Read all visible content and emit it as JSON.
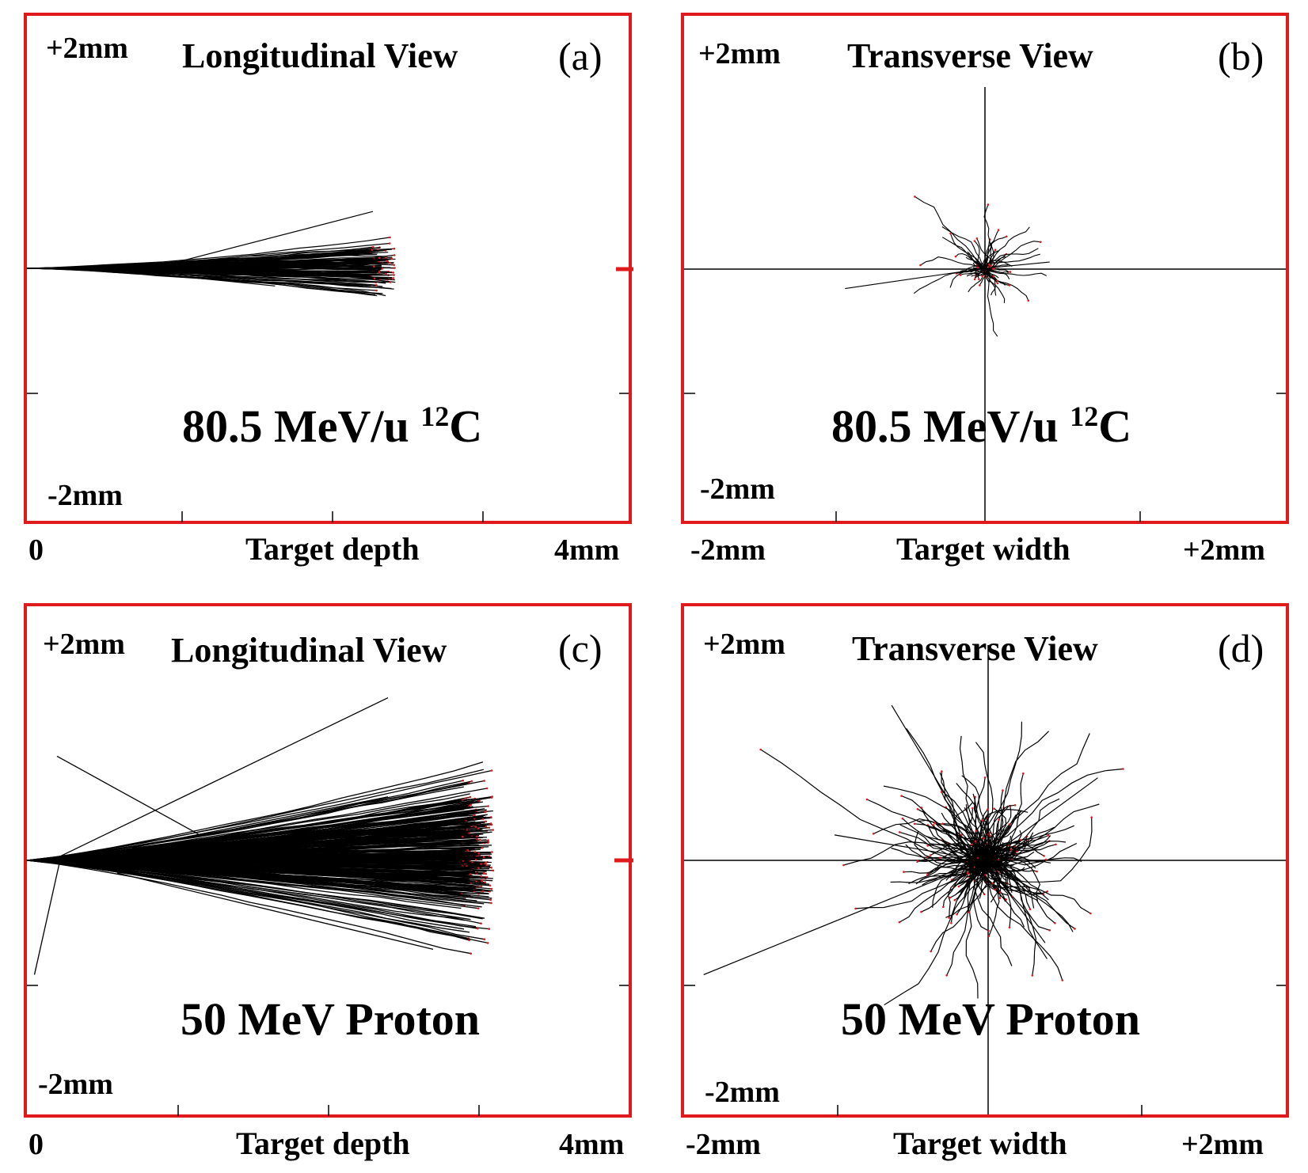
{
  "figure": {
    "colors": {
      "frame": "#e0191c",
      "track": "#000000",
      "stop": "#e0191c",
      "axis": "#000000"
    },
    "panels": [
      {
        "id": "a",
        "view_label": "Longitudinal View",
        "panel_label": "(a)",
        "top_label": "+2mm",
        "bottom_label": "-2mm",
        "beam_label": "80.5 MeV/u ",
        "beam_sup": "12",
        "beam_suffix": "C",
        "x_start": "0",
        "x_label": "Target depth",
        "x_end": "4mm"
      },
      {
        "id": "b",
        "view_label": "Transverse View",
        "panel_label": "(b)",
        "top_label": "+2mm",
        "bottom_label": "-2mm",
        "beam_label": "80.5 MeV/u ",
        "beam_sup": "12",
        "beam_suffix": "C",
        "x_start": "-2mm",
        "x_label": "Target width",
        "x_end": "+2mm"
      },
      {
        "id": "c",
        "view_label": "Longitudinal View",
        "panel_label": "(c)",
        "top_label": "+2mm",
        "bottom_label": "-2mm",
        "beam_label": "50 MeV Proton",
        "beam_sup": "",
        "beam_suffix": "",
        "x_start": "0",
        "x_label": "Target depth",
        "x_end": "4mm"
      },
      {
        "id": "d",
        "view_label": "Transverse View",
        "panel_label": "(d)",
        "top_label": "+2mm",
        "bottom_label": "-2mm",
        "beam_label": "50 MeV Proton",
        "beam_sup": "",
        "beam_suffix": "",
        "x_start": "-2mm",
        "x_label": "Target width",
        "x_end": "+2mm"
      }
    ]
  },
  "chart_data": [
    {
      "type": "scatter",
      "panel": "a",
      "title": "Longitudinal View",
      "annotation": "80.5 MeV/u 12C",
      "xlabel": "Target depth",
      "xlim": [
        0,
        4
      ],
      "ylim": [
        -2,
        2
      ],
      "units": "mm",
      "tracks": {
        "depth_range_mm": 2.45,
        "max_lateral_mm": 0.25,
        "count": 100
      }
    },
    {
      "type": "scatter",
      "panel": "b",
      "title": "Transverse View",
      "annotation": "80.5 MeV/u 12C",
      "xlabel": "Target width",
      "xlim": [
        -2,
        2
      ],
      "ylim": [
        -2,
        2
      ],
      "units": "mm",
      "tracks": {
        "core_radius_mm": 0.15,
        "max_lateral_mm": 0.9,
        "count": 90
      }
    },
    {
      "type": "scatter",
      "panel": "c",
      "title": "Longitudinal View",
      "annotation": "50 MeV Proton",
      "xlabel": "Target depth",
      "xlim": [
        0,
        4
      ],
      "ylim": [
        -2,
        2
      ],
      "units": "mm",
      "tracks": {
        "depth_range_mm": 3.1,
        "max_lateral_mm": 0.7,
        "count": 300
      }
    },
    {
      "type": "scatter",
      "panel": "d",
      "title": "Transverse View",
      "annotation": "50 MeV Proton",
      "xlabel": "Target width",
      "xlim": [
        -2,
        2
      ],
      "ylim": [
        -2,
        2
      ],
      "units": "mm",
      "tracks": {
        "core_radius_mm": 0.4,
        "max_lateral_mm": 1.9,
        "count": 320
      }
    }
  ]
}
